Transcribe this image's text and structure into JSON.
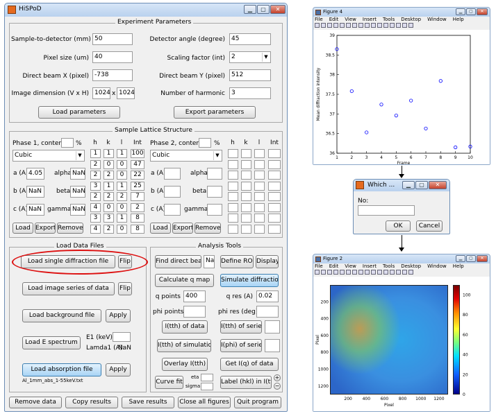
{
  "main": {
    "title": "HiSPoD",
    "win_min": "▁",
    "win_max": "▢",
    "win_close": "✕",
    "experiment": {
      "title": "Experiment Parameters",
      "fields": [
        {
          "label": "Sample-to-detector (mm)",
          "value": "50"
        },
        {
          "label": "Pixel size (um)",
          "value": "40"
        },
        {
          "label": "Direct beam X (pixel)",
          "value": "-738"
        }
      ],
      "dim_label": "Image dimension (V x H)",
      "dim_v": "1024",
      "dim_x": "x",
      "dim_h": "1024",
      "right_fields": [
        {
          "label": "Detector angle (degree)",
          "value": "45"
        },
        {
          "label": "Direct beam Y (pixel)",
          "value": "512"
        },
        {
          "label": "Number of harmonic",
          "value": "3"
        }
      ],
      "scaling_label": "Scaling factor (int)",
      "scaling_value": "2",
      "load_btn": "Load parameters",
      "export_btn": "Export parameters"
    },
    "lattice": {
      "title": "Sample Lattice Structure",
      "phase1": {
        "label": "Phase 1,  content",
        "pct": "%",
        "structure": "Cubic",
        "a_label": "a (A)",
        "a_value": "4.05",
        "b_label": "b (A)",
        "b_value": "NaN",
        "c_label": "c (A)",
        "c_value": "NaN",
        "alpha_label": "alpha",
        "alpha_value": "NaN",
        "beta_label": "beta",
        "beta_value": "NaN",
        "gamma_label": "gamma",
        "gamma_value": "NaN",
        "load": "Load",
        "export": "Export",
        "remove": "Remove"
      },
      "phase2": {
        "label": "Phase 2,  content",
        "pct": "%",
        "structure": "Cubic",
        "a_label": "a (A)",
        "b_label": "b (A)",
        "c_label": "c (A)",
        "alpha_label": "alpha",
        "beta_label": "beta",
        "gamma_label": "gamma",
        "load": "Load",
        "export": "Export",
        "remove": "Remove"
      },
      "headers": [
        "h",
        "k",
        "l",
        "Int"
      ],
      "hkl": [
        [
          "1",
          "1",
          "1",
          "100"
        ],
        [
          "2",
          "0",
          "0",
          "47"
        ],
        [
          "2",
          "2",
          "0",
          "22"
        ],
        [
          "3",
          "1",
          "1",
          "25"
        ],
        [
          "2",
          "2",
          "2",
          "7"
        ],
        [
          "4",
          "0",
          "0",
          "2"
        ],
        [
          "3",
          "3",
          "1",
          "8"
        ],
        [
          "4",
          "2",
          "0",
          "8"
        ]
      ]
    },
    "load_files": {
      "title": "Load Data Files",
      "single": "Load single diffraction file",
      "series": "Load image series of data",
      "flip": "Flip",
      "background": "Load background file",
      "apply": "Apply",
      "espectrum": "Load E spectrum",
      "e1_label": "E1 (keV):",
      "lamda_label": "Lamda1 (A):",
      "lamda_value": "NaN",
      "absorption": "Load absorption file",
      "abs_file": "Al_1mm_abs_1-55keV.txt"
    },
    "analysis": {
      "title": "Analysis Tools",
      "find_beam": "Find direct beam",
      "na": "Na",
      "define_roi": "Define ROI",
      "display": "Display",
      "calc_q": "Calculate q map",
      "simulate": "Simulate diffraction",
      "q_points_label": "q points",
      "q_points_value": "400",
      "q_res_label": "q res (A)",
      "q_res_value": "0.02",
      "phi_points_label": "phi points",
      "phi_res_label": "phi res (deg)",
      "itth_data": "I(tth) of data",
      "itth_series": "I(tth) of series",
      "itth_sim": "I(tth) of simulation",
      "iphi_series": "I(phi) of series",
      "overlay": "Overlay I(tth)",
      "iq_data": "Get I(q) of data",
      "curve_fit": "Curve fit",
      "eta_label": "eta",
      "sigma_label": "sigma",
      "label_hkl": "Label (hkl) in I(tth)",
      "plus": "+",
      "minus": "−"
    },
    "bottom": [
      "Remove data",
      "Copy results",
      "Save results",
      "Close all figures",
      "Quit program"
    ]
  },
  "figure4": {
    "title": "Figure 4",
    "menu": [
      "File",
      "Edit",
      "View",
      "Insert",
      "Tools",
      "Desktop",
      "Window",
      "Help"
    ],
    "chart_data": {
      "type": "scatter",
      "xlabel": "Frame",
      "ylabel": "Mean diffraction intensity",
      "xlim": [
        1,
        10
      ],
      "ylim": [
        36,
        39
      ],
      "xticks": [
        "1",
        "2",
        "3",
        "4",
        "5",
        "6",
        "7",
        "8",
        "9",
        "10"
      ],
      "yticks": [
        "36",
        "36.5",
        "37",
        "37.5",
        "38",
        "38.5",
        "39"
      ],
      "x": [
        1,
        2,
        3,
        4,
        5,
        6,
        7,
        8,
        9,
        10
      ],
      "y": [
        38.65,
        37.58,
        36.53,
        37.24,
        36.96,
        37.34,
        36.63,
        37.84,
        36.15,
        36.17
      ],
      "marker_color": "#0000ff"
    }
  },
  "dialog": {
    "title": "Which ...",
    "prompt": "No:",
    "value": "",
    "ok": "OK",
    "cancel": "Cancel"
  },
  "figure2": {
    "title": "Figure 2",
    "menu": [
      "File",
      "Edit",
      "View",
      "Insert",
      "Tools",
      "Desktop",
      "Window",
      "Help"
    ],
    "chart_data": {
      "type": "heatmap",
      "xlabel": "Pixel",
      "ylabel": "Pixel",
      "xticks": [
        "200",
        "400",
        "600",
        "800",
        "1000",
        "1200"
      ],
      "yticks": [
        "200",
        "400",
        "600",
        "800",
        "1000",
        "1200"
      ],
      "colorbar_ticks": [
        "100",
        "80",
        "60",
        "40",
        "20",
        "0"
      ],
      "colorbar_range": [
        0,
        110
      ]
    }
  }
}
